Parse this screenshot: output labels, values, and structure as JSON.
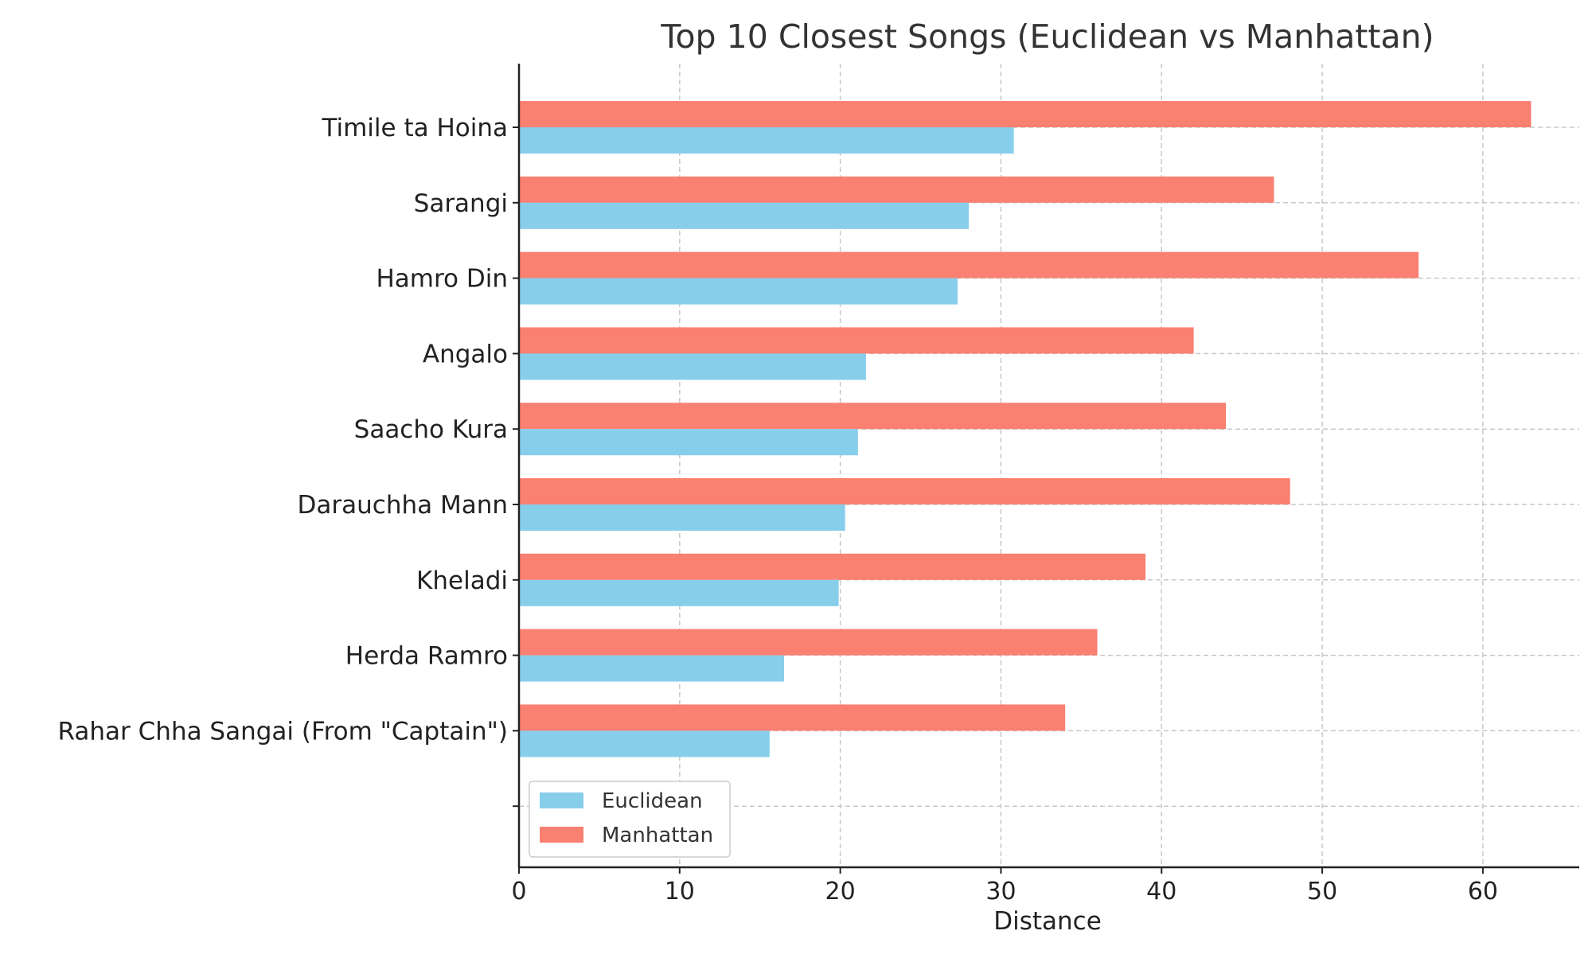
{
  "chart_data": {
    "type": "bar",
    "orientation": "horizontal",
    "title": "Top 10 Closest Songs (Euclidean vs Manhattan)",
    "xlabel": "Distance",
    "ylabel": "",
    "xlim": [
      0,
      66
    ],
    "xticks": [
      0,
      10,
      20,
      30,
      40,
      50,
      60
    ],
    "grid": true,
    "legend_position": "lower-left",
    "categories": [
      "Timile ta Hoina",
      "Sarangi",
      "Hamro Din",
      "Angalo",
      "Saacho Kura",
      "Darauchha Mann",
      "Kheladi",
      "Herda Ramro",
      "Rahar Chha Sangai (From \"Captain\")",
      ""
    ],
    "series": [
      {
        "name": "Euclidean",
        "color": "#87ceeb",
        "values": [
          30.8,
          28.0,
          27.3,
          21.6,
          21.1,
          20.3,
          19.9,
          16.5,
          15.6,
          0
        ]
      },
      {
        "name": "Manhattan",
        "color": "#fa8072",
        "values": [
          63,
          47,
          56,
          42,
          44,
          48,
          39,
          36,
          34,
          0
        ]
      }
    ]
  }
}
